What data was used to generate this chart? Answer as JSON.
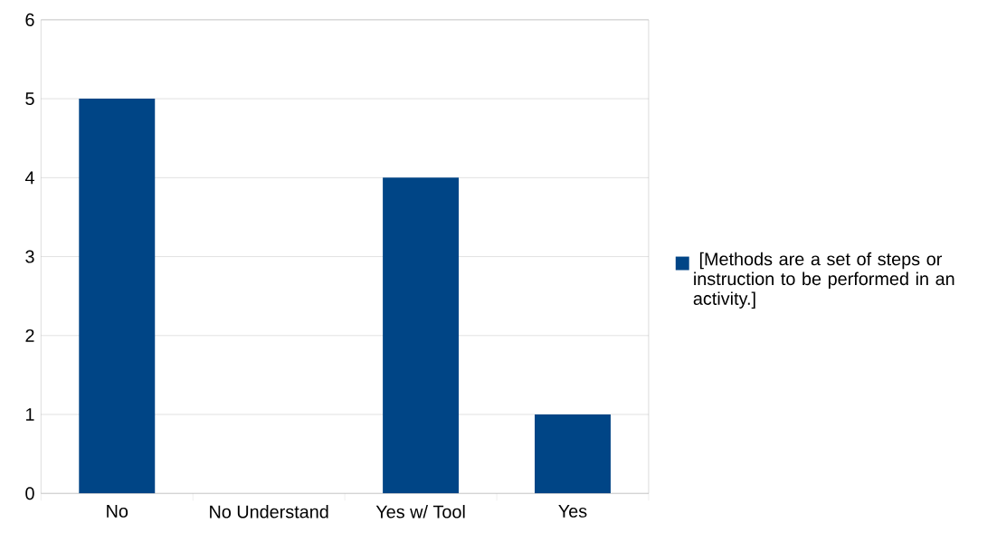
{
  "chart_data": {
    "type": "bar",
    "categories": [
      "No",
      "No Understand",
      "Yes w/ Tool",
      "Yes"
    ],
    "series": [
      {
        "name": " [Methods are a set of steps or instruction to be performed in an activity.]",
        "color": "#004586",
        "values": [
          5,
          0,
          4,
          1
        ]
      }
    ],
    "ylim": [
      0,
      6
    ],
    "yticks": [
      0,
      1,
      2,
      3,
      4,
      5,
      6
    ],
    "grid": "y",
    "legend": "right"
  }
}
